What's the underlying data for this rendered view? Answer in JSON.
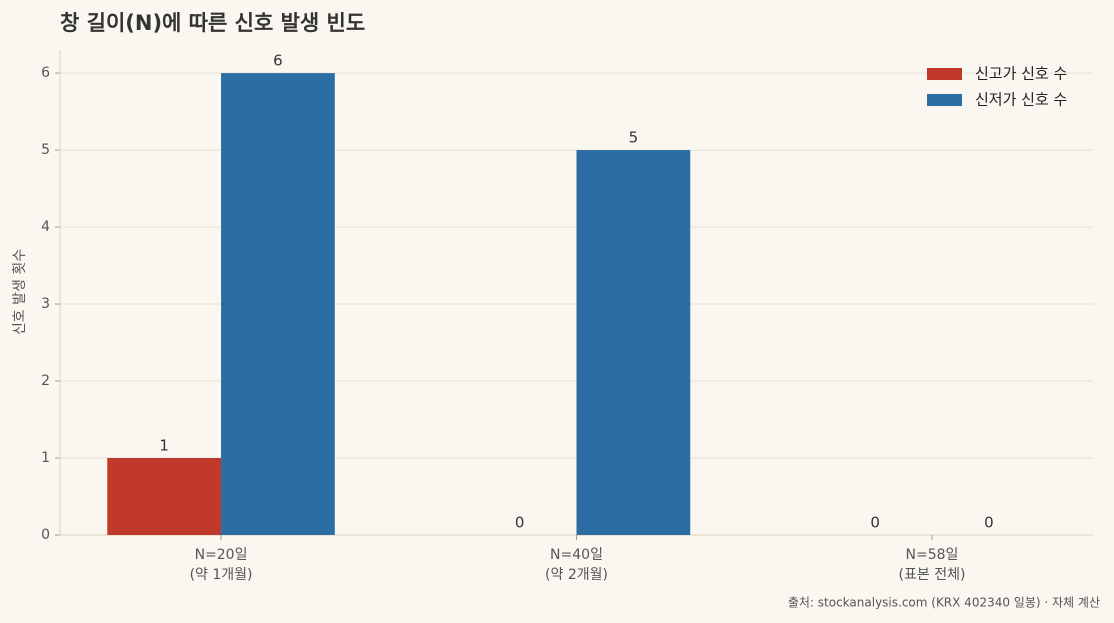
{
  "chart_data": {
    "type": "bar",
    "title": "창 길이(N)에 따른 신호 발생 빈도",
    "categories": [
      [
        "N=20일",
        "(약 1개월)"
      ],
      [
        "N=40일",
        "(약 2개월)"
      ],
      [
        "N=58일",
        "(표본 전체)"
      ]
    ],
    "series": [
      {
        "name": "신고가 신호 수",
        "color": "#c0392b",
        "values": [
          1,
          0,
          0
        ]
      },
      {
        "name": "신저가 신호 수",
        "color": "#2c6ea3",
        "values": [
          6,
          5,
          0
        ]
      }
    ],
    "ylabel": "신호 발생 횟수",
    "ylim": [
      0,
      6.3
    ],
    "yticks": [
      0,
      1,
      2,
      3,
      4,
      5,
      6
    ],
    "grid": true,
    "legend": "upper right",
    "source": "출처: stockanalysis.com (KRX 402340 일봉) · 자체 계산"
  }
}
